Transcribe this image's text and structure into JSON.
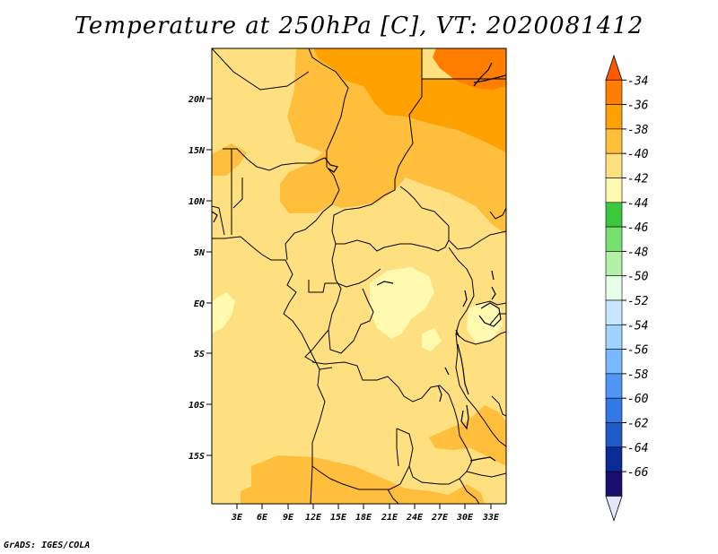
{
  "title": "Temperature at 250hPa [C], VT: 2020081412",
  "credit": "GrADS: IGES/COLA",
  "axes": {
    "lat_labels": [
      "20N",
      "15N",
      "10N",
      "5N",
      "EQ",
      "5S",
      "10S",
      "15S"
    ],
    "lon_labels": [
      "3E",
      "6E",
      "9E",
      "12E",
      "15E",
      "18E",
      "21E",
      "24E",
      "27E",
      "30E",
      "33E"
    ]
  },
  "colorbar": {
    "levels": [
      "-34",
      "-36",
      "-38",
      "-40",
      "-42",
      "-44",
      "-46",
      "-48",
      "-50",
      "-52",
      "-54",
      "-56",
      "-58",
      "-60",
      "-62",
      "-64",
      "-66"
    ],
    "colors": [
      "#ff5a00",
      "#ff7e00",
      "#ffa100",
      "#ffbe3c",
      "#ffe080",
      "#fffab0",
      "#3cc83c",
      "#78e06e",
      "#b4f0a8",
      "#e6ffe6",
      "#c8e6ff",
      "#a0d2ff",
      "#78b9ff",
      "#5096f5",
      "#3278e6",
      "#1e5ac8",
      "#0a2a96",
      "#1a0f6e",
      "#e6e6fa"
    ]
  }
}
